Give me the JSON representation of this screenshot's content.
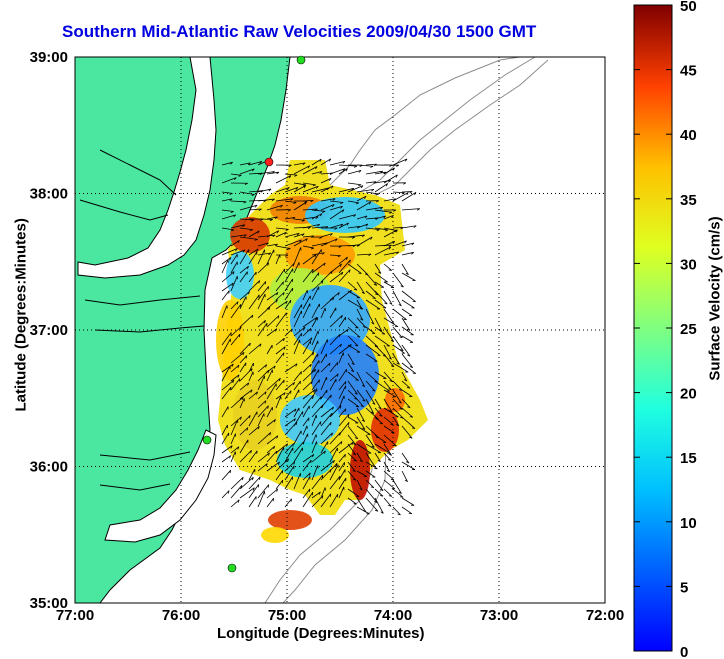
{
  "title": "Southern Mid-Atlantic Raw Velocities 2009/04/30 1500 GMT",
  "xlabel": "Longitude (Degrees:Minutes)",
  "ylabel": "Latitude (Degrees:Minutes)",
  "colorbar_label": "Surface Velocity (cm/s)",
  "map_data": {
    "lon_range": [
      -77,
      -72
    ],
    "lat_range": [
      35,
      39
    ],
    "x_ticks": [
      "77:00",
      "76:00",
      "75:00",
      "74:00",
      "73:00",
      "72:00"
    ],
    "y_ticks": [
      "39:00",
      "38:00",
      "37:00",
      "36:00",
      "35:00"
    ],
    "grid": true,
    "colorbar": {
      "range": [
        0,
        50
      ],
      "ticks": [
        "0",
        "5",
        "10",
        "15",
        "20",
        "25",
        "30",
        "35",
        "40",
        "45",
        "50"
      ],
      "colormap": "jet"
    },
    "colors": {
      "land": "#4be7a0",
      "ocean": "#ffffff",
      "coastline": "#000000",
      "bathymetry": "#8c8c8c",
      "title": "#0000e0",
      "station_marker": "#22dd22",
      "station_marker_red": "#ff2020"
    }
  }
}
